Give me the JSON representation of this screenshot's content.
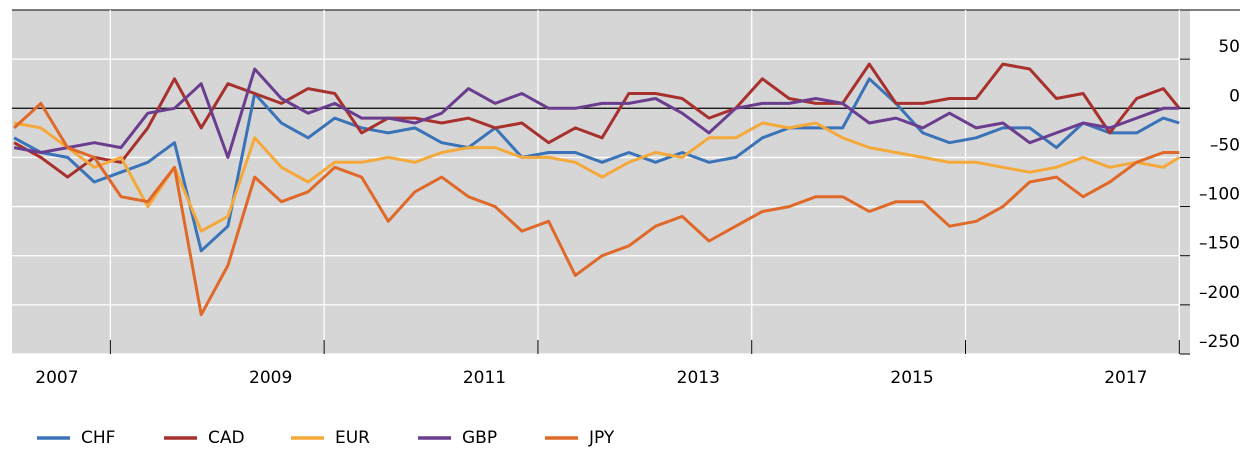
{
  "chart_data": {
    "type": "line",
    "x": [
      2007.1,
      2007.35,
      2007.6,
      2007.85,
      2008.1,
      2008.35,
      2008.6,
      2008.85,
      2009.1,
      2009.35,
      2009.6,
      2009.85,
      2010.1,
      2010.35,
      2010.6,
      2010.85,
      2011.1,
      2011.35,
      2011.6,
      2011.85,
      2012.1,
      2012.35,
      2012.6,
      2012.85,
      2013.1,
      2013.35,
      2013.6,
      2013.85,
      2014.1,
      2014.35,
      2014.6,
      2014.85,
      2015.1,
      2015.35,
      2015.6,
      2015.85,
      2016.1,
      2016.35,
      2016.6,
      2016.85,
      2017.1,
      2017.35,
      2017.6,
      2017.85,
      2018.0
    ],
    "series": [
      {
        "name": "CHF",
        "color": "#3a73b8",
        "values": [
          -30,
          -45,
          -50,
          -75,
          -65,
          -55,
          -35,
          -145,
          -120,
          15,
          -15,
          -30,
          -10,
          -20,
          -25,
          -20,
          -35,
          -40,
          -20,
          -50,
          -45,
          -45,
          -55,
          -45,
          -55,
          -45,
          -55,
          -50,
          -30,
          -20,
          -20,
          -20,
          30,
          5,
          -25,
          -35,
          -30,
          -20,
          -20,
          -40,
          -15,
          -25,
          -25,
          -10,
          -15
        ]
      },
      {
        "name": "CAD",
        "color": "#a8312e",
        "values": [
          -35,
          -50,
          -70,
          -50,
          -55,
          -20,
          30,
          -20,
          25,
          15,
          5,
          20,
          15,
          -25,
          -10,
          -10,
          -15,
          -10,
          -20,
          -15,
          -35,
          -20,
          -30,
          15,
          15,
          10,
          -10,
          0,
          30,
          10,
          5,
          5,
          45,
          5,
          5,
          10,
          10,
          45,
          40,
          10,
          15,
          -25,
          10,
          20,
          0
        ]
      },
      {
        "name": "EUR",
        "color": "#f5a93a",
        "values": [
          -15,
          -20,
          -40,
          -60,
          -50,
          -100,
          -60,
          -125,
          -110,
          -30,
          -60,
          -75,
          -55,
          -55,
          -50,
          -55,
          -45,
          -40,
          -40,
          -50,
          -50,
          -55,
          -70,
          -55,
          -45,
          -50,
          -30,
          -30,
          -15,
          -20,
          -15,
          -30,
          -40,
          -45,
          -50,
          -55,
          -55,
          -60,
          -65,
          -60,
          -50,
          -60,
          -55,
          -60,
          -50
        ]
      },
      {
        "name": "GBP",
        "color": "#6b3d8f",
        "values": [
          -40,
          -45,
          -40,
          -35,
          -40,
          -5,
          0,
          25,
          -50,
          40,
          10,
          -5,
          5,
          -10,
          -10,
          -15,
          -5,
          20,
          5,
          15,
          0,
          0,
          5,
          5,
          10,
          -5,
          -25,
          0,
          5,
          5,
          10,
          5,
          -15,
          -10,
          -20,
          -5,
          -20,
          -15,
          -35,
          -25,
          -15,
          -20,
          -10,
          0,
          0
        ]
      },
      {
        "name": "JPY",
        "color": "#e0692a",
        "values": [
          -20,
          5,
          -40,
          -50,
          -90,
          -95,
          -60,
          -210,
          -160,
          -70,
          -95,
          -85,
          -60,
          -70,
          -115,
          -85,
          -70,
          -90,
          -100,
          -125,
          -115,
          -170,
          -150,
          -140,
          -120,
          -110,
          -135,
          -120,
          -105,
          -100,
          -90,
          -90,
          -105,
          -95,
          -95,
          -120,
          -115,
          -100,
          -75,
          -70,
          -90,
          -75,
          -55,
          -45,
          -45
        ]
      }
    ],
    "xlim": [
      2007.08,
      2018.1
    ],
    "xticks": [
      {
        "value": 2007.5,
        "label": "2007"
      },
      {
        "value": 2009.5,
        "label": "2009"
      },
      {
        "value": 2011.5,
        "label": "2011"
      },
      {
        "value": 2013.5,
        "label": "2013"
      },
      {
        "value": 2015.5,
        "label": "2015"
      },
      {
        "value": 2017.5,
        "label": "2017"
      }
    ],
    "xgrid": [
      2008,
      2010,
      2012,
      2014,
      2016,
      2018
    ],
    "ylim": [
      -250,
      100
    ],
    "yticks": [
      {
        "value": -250,
        "label": "–250"
      },
      {
        "value": -200,
        "label": "–200"
      },
      {
        "value": -150,
        "label": "–150"
      },
      {
        "value": -100,
        "label": "–100"
      },
      {
        "value": -50,
        "label": "–50"
      },
      0,
      50
    ],
    "grid": true,
    "zero_line": true,
    "background": "#d6d6d6"
  }
}
